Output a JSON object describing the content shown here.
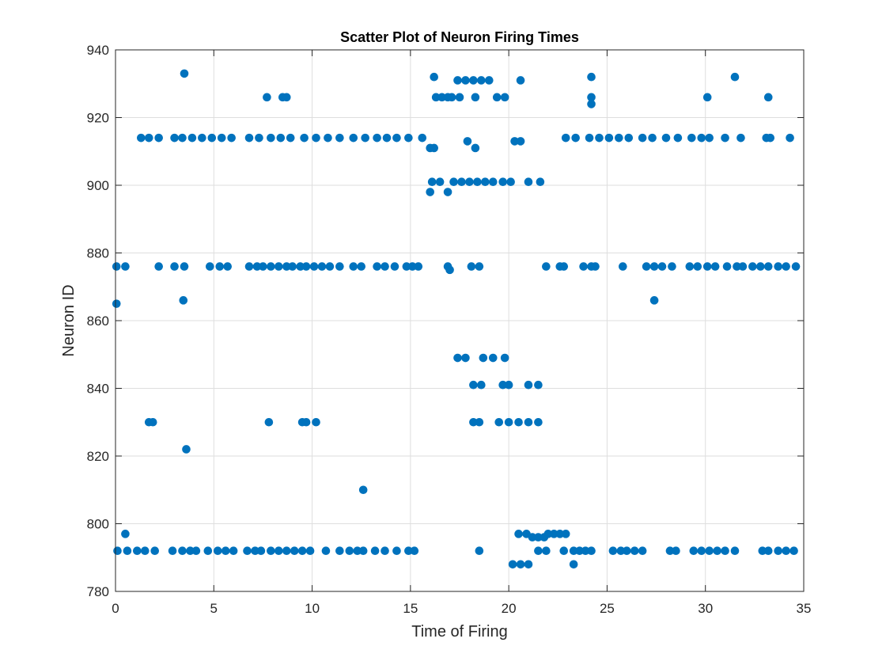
{
  "chart_data": {
    "type": "scatter",
    "title": "Scatter Plot of Neuron Firing Times",
    "xlabel": "Time of Firing",
    "ylabel": "Neuron ID",
    "xlim": [
      0,
      35
    ],
    "ylim": [
      780,
      940
    ],
    "xticks": [
      0,
      5,
      10,
      15,
      20,
      25,
      30,
      35
    ],
    "yticks": [
      780,
      800,
      820,
      840,
      860,
      880,
      900,
      920,
      940
    ],
    "xtick_labels": [
      "0",
      "5",
      "10",
      "15",
      "20",
      "25",
      "30",
      "35"
    ],
    "ytick_labels": [
      "780",
      "800",
      "820",
      "840",
      "860",
      "880",
      "900",
      "920",
      "940"
    ],
    "grid": true,
    "legend": "none",
    "marker_color": "#0072BD",
    "series": [
      {
        "points": [
          [
            0.05,
            876
          ],
          [
            0.5,
            876
          ],
          [
            2.2,
            876
          ],
          [
            3.0,
            876
          ],
          [
            3.5,
            876
          ],
          [
            4.8,
            876
          ],
          [
            5.3,
            876
          ],
          [
            5.7,
            876
          ],
          [
            6.8,
            876
          ],
          [
            7.2,
            876
          ],
          [
            7.5,
            876
          ],
          [
            7.9,
            876
          ],
          [
            8.3,
            876
          ],
          [
            8.7,
            876
          ],
          [
            9.0,
            876
          ],
          [
            9.4,
            876
          ],
          [
            9.7,
            876
          ],
          [
            10.1,
            876
          ],
          [
            10.5,
            876
          ],
          [
            10.9,
            876
          ],
          [
            11.4,
            876
          ],
          [
            12.1,
            876
          ],
          [
            12.5,
            876
          ],
          [
            13.3,
            876
          ],
          [
            13.7,
            876
          ],
          [
            14.2,
            876
          ],
          [
            14.8,
            876
          ],
          [
            15.1,
            876
          ],
          [
            15.4,
            876
          ],
          [
            16.9,
            876
          ],
          [
            17.0,
            875
          ],
          [
            18.1,
            876
          ],
          [
            18.5,
            876
          ],
          [
            21.9,
            876
          ],
          [
            22.6,
            876
          ],
          [
            22.8,
            876
          ],
          [
            23.8,
            876
          ],
          [
            24.2,
            876
          ],
          [
            24.4,
            876
          ],
          [
            25.8,
            876
          ],
          [
            27.0,
            876
          ],
          [
            27.4,
            876
          ],
          [
            27.8,
            876
          ],
          [
            28.3,
            876
          ],
          [
            29.2,
            876
          ],
          [
            29.6,
            876
          ],
          [
            30.1,
            876
          ],
          [
            30.5,
            876
          ],
          [
            31.1,
            876
          ],
          [
            31.6,
            876
          ],
          [
            31.9,
            876
          ],
          [
            32.4,
            876
          ],
          [
            32.8,
            876
          ],
          [
            33.2,
            876
          ],
          [
            33.7,
            876
          ],
          [
            34.1,
            876
          ],
          [
            34.6,
            876
          ],
          [
            0.05,
            865
          ],
          [
            3.45,
            866
          ],
          [
            27.4,
            866
          ],
          [
            1.3,
            914
          ],
          [
            1.7,
            914
          ],
          [
            2.2,
            914
          ],
          [
            3.0,
            914
          ],
          [
            3.4,
            914
          ],
          [
            3.9,
            914
          ],
          [
            4.4,
            914
          ],
          [
            4.9,
            914
          ],
          [
            5.4,
            914
          ],
          [
            5.9,
            914
          ],
          [
            6.8,
            914
          ],
          [
            7.3,
            914
          ],
          [
            7.9,
            914
          ],
          [
            8.4,
            914
          ],
          [
            8.9,
            914
          ],
          [
            9.6,
            914
          ],
          [
            10.2,
            914
          ],
          [
            10.8,
            914
          ],
          [
            11.4,
            914
          ],
          [
            12.1,
            914
          ],
          [
            12.7,
            914
          ],
          [
            13.3,
            914
          ],
          [
            13.8,
            914
          ],
          [
            14.3,
            914
          ],
          [
            14.9,
            914
          ],
          [
            15.6,
            914
          ],
          [
            22.9,
            914
          ],
          [
            23.4,
            914
          ],
          [
            24.1,
            914
          ],
          [
            24.6,
            914
          ],
          [
            25.1,
            914
          ],
          [
            25.6,
            914
          ],
          [
            26.1,
            914
          ],
          [
            26.8,
            914
          ],
          [
            27.3,
            914
          ],
          [
            28.0,
            914
          ],
          [
            28.6,
            914
          ],
          [
            29.3,
            914
          ],
          [
            29.8,
            914
          ],
          [
            30.2,
            914
          ],
          [
            31.0,
            914
          ],
          [
            31.8,
            914
          ],
          [
            33.1,
            914
          ],
          [
            33.3,
            914
          ],
          [
            34.3,
            914
          ],
          [
            3.5,
            933
          ],
          [
            7.7,
            926
          ],
          [
            8.5,
            926
          ],
          [
            8.7,
            926
          ],
          [
            16.2,
            932
          ],
          [
            16.3,
            926
          ],
          [
            16.6,
            926
          ],
          [
            16.9,
            926
          ],
          [
            17.1,
            926
          ],
          [
            17.4,
            931
          ],
          [
            17.5,
            926
          ],
          [
            17.8,
            931
          ],
          [
            18.2,
            931
          ],
          [
            18.3,
            926
          ],
          [
            18.6,
            931
          ],
          [
            19.0,
            931
          ],
          [
            19.4,
            926
          ],
          [
            19.8,
            926
          ],
          [
            20.6,
            931
          ],
          [
            24.2,
            932
          ],
          [
            24.2,
            926
          ],
          [
            24.2,
            924
          ],
          [
            30.1,
            926
          ],
          [
            31.5,
            932
          ],
          [
            33.2,
            926
          ],
          [
            16.0,
            911
          ],
          [
            16.2,
            911
          ],
          [
            17.9,
            913
          ],
          [
            18.3,
            911
          ],
          [
            20.3,
            913
          ],
          [
            20.6,
            913
          ],
          [
            16.0,
            898
          ],
          [
            16.1,
            901
          ],
          [
            16.5,
            901
          ],
          [
            16.9,
            898
          ],
          [
            17.2,
            901
          ],
          [
            17.6,
            901
          ],
          [
            18.0,
            901
          ],
          [
            18.4,
            901
          ],
          [
            18.8,
            901
          ],
          [
            19.2,
            901
          ],
          [
            19.7,
            901
          ],
          [
            20.1,
            901
          ],
          [
            21.0,
            901
          ],
          [
            21.6,
            901
          ],
          [
            17.4,
            849
          ],
          [
            17.8,
            849
          ],
          [
            18.7,
            849
          ],
          [
            19.2,
            849
          ],
          [
            19.8,
            849
          ],
          [
            18.2,
            841
          ],
          [
            18.6,
            841
          ],
          [
            19.7,
            841
          ],
          [
            20.0,
            841
          ],
          [
            21.0,
            841
          ],
          [
            21.5,
            841
          ],
          [
            18.2,
            830
          ],
          [
            18.5,
            830
          ],
          [
            19.5,
            830
          ],
          [
            20.0,
            830
          ],
          [
            20.5,
            830
          ],
          [
            21.0,
            830
          ],
          [
            21.5,
            830
          ],
          [
            1.7,
            830
          ],
          [
            1.9,
            830
          ],
          [
            7.8,
            830
          ],
          [
            9.5,
            830
          ],
          [
            9.7,
            830
          ],
          [
            10.2,
            830
          ],
          [
            3.6,
            822
          ],
          [
            12.6,
            810
          ],
          [
            0.1,
            792
          ],
          [
            0.6,
            792
          ],
          [
            1.1,
            792
          ],
          [
            1.5,
            792
          ],
          [
            2.0,
            792
          ],
          [
            2.9,
            792
          ],
          [
            3.4,
            792
          ],
          [
            3.8,
            792
          ],
          [
            4.1,
            792
          ],
          [
            4.7,
            792
          ],
          [
            5.2,
            792
          ],
          [
            5.6,
            792
          ],
          [
            6.0,
            792
          ],
          [
            6.7,
            792
          ],
          [
            7.1,
            792
          ],
          [
            7.4,
            792
          ],
          [
            7.9,
            792
          ],
          [
            8.3,
            792
          ],
          [
            8.7,
            792
          ],
          [
            9.1,
            792
          ],
          [
            9.5,
            792
          ],
          [
            9.9,
            792
          ],
          [
            10.7,
            792
          ],
          [
            11.4,
            792
          ],
          [
            11.9,
            792
          ],
          [
            12.3,
            792
          ],
          [
            12.6,
            792
          ],
          [
            13.2,
            792
          ],
          [
            13.7,
            792
          ],
          [
            14.3,
            792
          ],
          [
            14.9,
            792
          ],
          [
            15.2,
            792
          ],
          [
            18.5,
            792
          ],
          [
            21.5,
            792
          ],
          [
            21.9,
            792
          ],
          [
            22.8,
            792
          ],
          [
            23.3,
            792
          ],
          [
            23.6,
            792
          ],
          [
            23.9,
            792
          ],
          [
            24.2,
            792
          ],
          [
            25.3,
            792
          ],
          [
            25.7,
            792
          ],
          [
            26.0,
            792
          ],
          [
            26.4,
            792
          ],
          [
            26.8,
            792
          ],
          [
            28.2,
            792
          ],
          [
            28.5,
            792
          ],
          [
            29.4,
            792
          ],
          [
            29.8,
            792
          ],
          [
            30.2,
            792
          ],
          [
            30.6,
            792
          ],
          [
            31.0,
            792
          ],
          [
            31.5,
            792
          ],
          [
            32.9,
            792
          ],
          [
            33.2,
            792
          ],
          [
            33.7,
            792
          ],
          [
            34.1,
            792
          ],
          [
            34.5,
            792
          ],
          [
            0.5,
            797
          ],
          [
            20.5,
            797
          ],
          [
            20.9,
            797
          ],
          [
            21.2,
            796
          ],
          [
            21.5,
            796
          ],
          [
            21.8,
            796
          ],
          [
            22.0,
            797
          ],
          [
            22.3,
            797
          ],
          [
            22.6,
            797
          ],
          [
            22.9,
            797
          ],
          [
            20.2,
            788
          ],
          [
            20.6,
            788
          ],
          [
            21.0,
            788
          ],
          [
            23.3,
            788
          ]
        ]
      }
    ]
  }
}
